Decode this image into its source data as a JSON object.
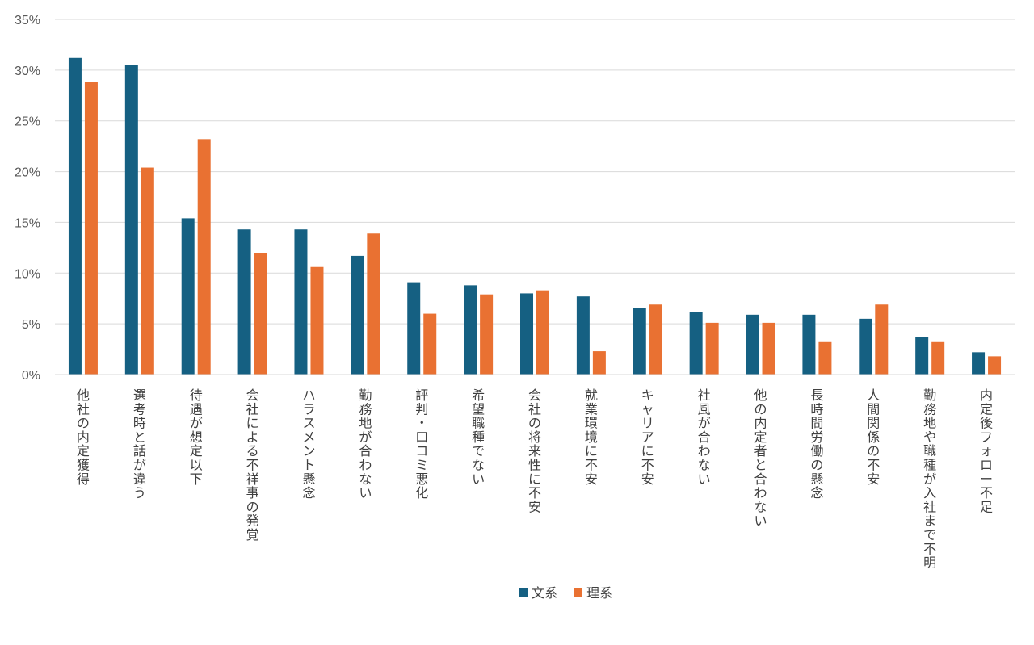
{
  "chart_data": {
    "type": "bar",
    "title": "",
    "xlabel": "",
    "ylabel": "",
    "ylim": [
      0,
      35
    ],
    "yticks": [
      0,
      5,
      10,
      15,
      20,
      25,
      30,
      35
    ],
    "ytick_labels": [
      "0%",
      "5%",
      "10%",
      "15%",
      "20%",
      "25%",
      "30%",
      "35%"
    ],
    "grid": true,
    "legend_position": "bottom",
    "categories": [
      "他社の内定獲得",
      "選考時と話が違う",
      "待遇が想定以下",
      "会社による不祥事の発覚",
      "ハラスメント懸念",
      "勤務地が合わない",
      "評判・口コミ悪化",
      "希望職種でない",
      "会社の将来性に不安",
      "就業環境に不安",
      "キャリアに不安",
      "社風が合わない",
      "他の内定者と合わない",
      "長時間労働の懸念",
      "人間関係の不安",
      "勤務地や職種が入社まで不明",
      "内定後フォロー不足"
    ],
    "series": [
      {
        "name": "文系",
        "color": "#156082",
        "values": [
          31.2,
          30.5,
          15.4,
          14.3,
          14.3,
          11.7,
          9.1,
          8.8,
          8.0,
          7.7,
          6.6,
          6.2,
          5.9,
          5.9,
          5.5,
          3.7,
          2.2
        ]
      },
      {
        "name": "理系",
        "color": "#E97132",
        "values": [
          28.8,
          20.4,
          23.2,
          12.0,
          10.6,
          13.9,
          6.0,
          7.9,
          8.3,
          2.3,
          6.9,
          5.1,
          5.1,
          3.2,
          6.9,
          3.2,
          1.8
        ]
      }
    ]
  }
}
